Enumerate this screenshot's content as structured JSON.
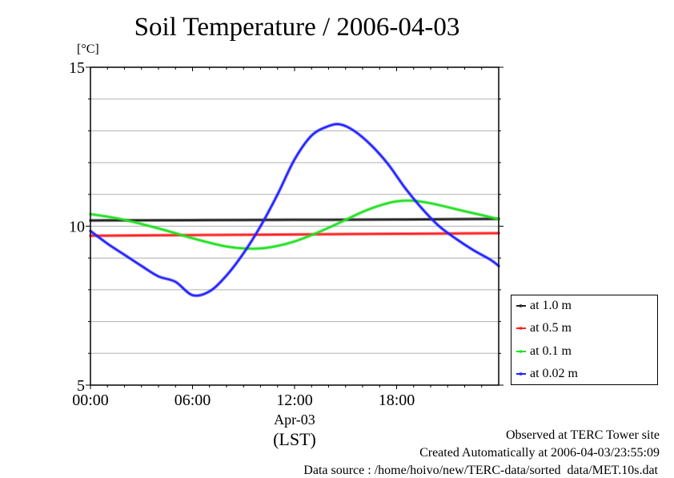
{
  "chart_data": {
    "type": "line",
    "title": "Soil Temperature / 2006-04-03",
    "ylabel": "[°C]",
    "xlabel": "Apr-03",
    "xlabel_sub": "(LST)",
    "xlim_hours": [
      0,
      24
    ],
    "ylim": [
      5,
      15
    ],
    "yticks": [
      5,
      10,
      15
    ],
    "ytick_labels": [
      "5",
      "10",
      "15"
    ],
    "xticks_hours": [
      0,
      6,
      12,
      18
    ],
    "xtick_labels": [
      "00:00",
      "06:00",
      "12:00",
      "18:00"
    ],
    "grid": true,
    "legend_position": "right",
    "series": [
      {
        "name": "at 1.0 m",
        "color": "#202020",
        "x": [
          0,
          6,
          12,
          18,
          24
        ],
        "values": [
          10.18,
          10.19,
          10.2,
          10.21,
          10.23
        ]
      },
      {
        "name": "at 0.5 m",
        "color": "#ff2020",
        "x": [
          0,
          6,
          12,
          18,
          24
        ],
        "values": [
          9.7,
          9.72,
          9.74,
          9.76,
          9.78
        ]
      },
      {
        "name": "at 0.1 m",
        "color": "#20e020",
        "x": [
          0,
          1,
          2,
          3,
          4,
          5,
          6,
          7,
          8,
          9,
          10,
          11,
          12,
          13,
          14,
          15,
          16,
          17,
          18,
          19,
          20,
          21,
          22,
          23,
          24
        ],
        "values": [
          10.38,
          10.3,
          10.2,
          10.07,
          9.93,
          9.78,
          9.62,
          9.48,
          9.36,
          9.3,
          9.3,
          9.38,
          9.52,
          9.72,
          9.95,
          10.2,
          10.45,
          10.65,
          10.78,
          10.8,
          10.72,
          10.6,
          10.47,
          10.35,
          10.22
        ]
      },
      {
        "name": "at 0.02 m",
        "color": "#2020ff",
        "x": [
          0,
          1,
          2,
          3,
          4,
          5,
          6,
          7,
          8,
          9,
          10,
          11,
          12,
          13,
          14,
          14.7,
          15.5,
          16.5,
          17.5,
          18.5,
          19.5,
          20.5,
          21.5,
          22.5,
          23.5,
          24
        ],
        "values": [
          9.85,
          9.45,
          9.1,
          8.75,
          8.42,
          8.25,
          7.83,
          7.95,
          8.45,
          9.15,
          10.0,
          11.0,
          12.1,
          12.85,
          13.15,
          13.2,
          13.0,
          12.55,
          11.95,
          11.2,
          10.55,
          10.0,
          9.6,
          9.25,
          8.95,
          8.75
        ]
      }
    ]
  },
  "footer": {
    "observed": "Observed at TERC Tower site",
    "created": "Created Automatically at 2006-04-03/23:55:09",
    "source": "Data source : /home/hoivo/new/TERC-data/sorted  data/MET.10s.dat"
  }
}
